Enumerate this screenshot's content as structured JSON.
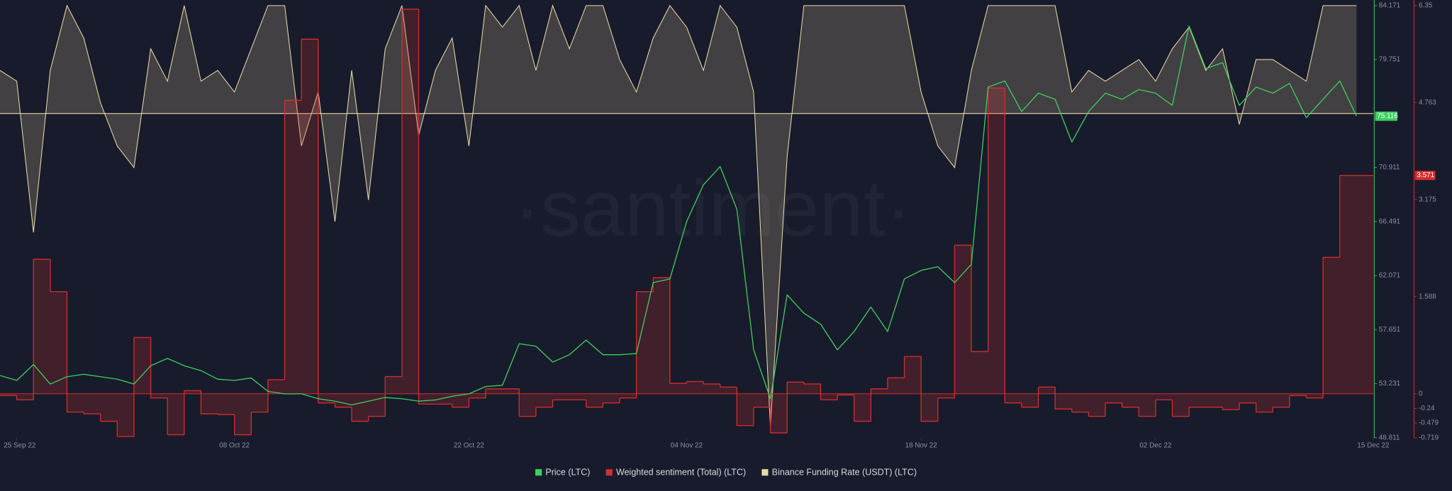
{
  "chart_data": {
    "type": "line",
    "watermark": "·santiment·",
    "x": [
      "2022-09-24",
      "2022-09-25",
      "2022-09-26",
      "2022-09-27",
      "2022-09-28",
      "2022-09-29",
      "2022-09-30",
      "2022-10-01",
      "2022-10-02",
      "2022-10-03",
      "2022-10-04",
      "2022-10-05",
      "2022-10-06",
      "2022-10-07",
      "2022-10-08",
      "2022-10-09",
      "2022-10-10",
      "2022-10-11",
      "2022-10-12",
      "2022-10-13",
      "2022-10-14",
      "2022-10-15",
      "2022-10-16",
      "2022-10-17",
      "2022-10-18",
      "2022-10-19",
      "2022-10-20",
      "2022-10-21",
      "2022-10-22",
      "2022-10-23",
      "2022-10-24",
      "2022-10-25",
      "2022-10-26",
      "2022-10-27",
      "2022-10-28",
      "2022-10-29",
      "2022-10-30",
      "2022-10-31",
      "2022-11-01",
      "2022-11-02",
      "2022-11-03",
      "2022-11-04",
      "2022-11-05",
      "2022-11-06",
      "2022-11-07",
      "2022-11-08",
      "2022-11-09",
      "2022-11-10",
      "2022-11-11",
      "2022-11-12",
      "2022-11-13",
      "2022-11-14",
      "2022-11-15",
      "2022-11-16",
      "2022-11-17",
      "2022-11-18",
      "2022-11-19",
      "2022-11-20",
      "2022-11-21",
      "2022-11-22",
      "2022-11-23",
      "2022-11-24",
      "2022-11-25",
      "2022-11-26",
      "2022-11-27",
      "2022-11-28",
      "2022-11-29",
      "2022-11-30",
      "2022-12-01",
      "2022-12-02",
      "2022-12-03",
      "2022-12-04",
      "2022-12-05",
      "2022-12-06",
      "2022-12-07",
      "2022-12-08",
      "2022-12-09",
      "2022-12-10",
      "2022-12-11",
      "2022-12-12",
      "2022-12-13",
      "2022-12-14"
    ],
    "xlim": [
      "2022-09-24",
      "2022-12-15"
    ],
    "xticks": [
      {
        "value": "2022-09-25",
        "label": "25 Sep 22"
      },
      {
        "value": "2022-10-08",
        "label": "08 Oct 22"
      },
      {
        "value": "2022-10-22",
        "label": "22 Oct 22"
      },
      {
        "value": "2022-11-04",
        "label": "04 Nov 22"
      },
      {
        "value": "2022-11-18",
        "label": "18 Nov 22"
      },
      {
        "value": "2022-12-02",
        "label": "02 Dec 22"
      },
      {
        "value": "2022-12-15",
        "label": "15 Dec 22"
      }
    ],
    "ylim": [
      48.811,
      84.171
    ],
    "yticks": [
      84.171,
      79.751,
      70.911,
      66.491,
      62.071,
      57.651,
      53.231,
      48.811
    ],
    "y2lim": [
      -0.719,
      6.35
    ],
    "y2ticks": [
      6.35,
      4.763,
      3.175,
      1.588,
      0,
      -0.24,
      -0.479,
      -0.719
    ],
    "y3lim": [
      -0.03,
      0.01
    ],
    "series": [
      {
        "name": "Price (LTC)",
        "color": "#3ecf5f",
        "values": [
          53.9,
          53.5,
          54.8,
          53.2,
          53.8,
          54.0,
          53.8,
          53.6,
          53.2,
          54.7,
          55.3,
          54.7,
          54.3,
          53.6,
          53.5,
          53.7,
          52.6,
          52.4,
          52.4,
          52.0,
          51.8,
          51.5,
          51.8,
          52.1,
          52.0,
          51.8,
          51.9,
          52.2,
          52.4,
          53.0,
          53.1,
          56.5,
          56.3,
          55.0,
          55.6,
          56.8,
          55.6,
          55.6,
          55.7,
          61.5,
          61.8,
          66.5,
          69.5,
          71.0,
          67.5,
          56.0,
          52.0,
          60.5,
          59.0,
          58.1,
          56.0,
          57.5,
          59.5,
          57.5,
          61.8,
          62.5,
          62.8,
          61.5,
          63.0,
          77.5,
          78.0,
          75.5,
          77.0,
          76.5,
          73.0,
          75.5,
          77.0,
          76.5,
          77.3,
          77.0,
          76.0,
          82.5,
          79.0,
          79.5,
          76.0,
          77.5,
          77.0,
          77.8,
          75.0,
          76.5,
          78.0,
          75.116
        ]
      },
      {
        "name": "Weighted sentiment (Total) (LTC)",
        "color": "#d42e2e",
        "axis": "y2",
        "style": "step",
        "values": [
          -0.03,
          -0.1,
          2.2,
          1.67,
          -0.3,
          -0.33,
          -0.45,
          -0.7,
          0.92,
          -0.07,
          -0.67,
          0.05,
          -0.33,
          -0.34,
          -0.67,
          -0.3,
          0.23,
          4.8,
          5.8,
          -0.15,
          -0.22,
          -0.45,
          -0.37,
          0.28,
          6.29,
          -0.17,
          -0.17,
          -0.22,
          -0.07,
          0.08,
          0.08,
          -0.37,
          -0.22,
          -0.1,
          -0.1,
          -0.22,
          -0.15,
          -0.07,
          1.67,
          1.9,
          0.17,
          0.2,
          0.16,
          0.11,
          -0.52,
          -0.22,
          -0.64,
          0.19,
          0.16,
          -0.1,
          -0.02,
          -0.45,
          0.08,
          0.26,
          0.61,
          -0.45,
          -0.07,
          2.43,
          0.69,
          5.0,
          -0.15,
          -0.22,
          0.11,
          -0.25,
          -0.3,
          -0.37,
          -0.15,
          -0.22,
          -0.37,
          -0.1,
          -0.37,
          -0.22,
          -0.22,
          -0.26,
          -0.15,
          -0.3,
          -0.22,
          -0.03,
          -0.07,
          2.23,
          3.571,
          3.571
        ]
      },
      {
        "name": "Binance Funding Rate (USDT) (LTC)",
        "color": "#e9d9a6",
        "axis": "y3",
        "values": [
          0.004,
          0.003,
          -0.011,
          0.004,
          0.01,
          0.007,
          0.001,
          -0.003,
          -0.005,
          0.006,
          0.003,
          0.01,
          0.003,
          0.004,
          0.002,
          0.006,
          0.01,
          0.01,
          -0.003,
          0.002,
          -0.01,
          0.004,
          -0.008,
          0.006,
          0.01,
          -0.002,
          0.004,
          0.007,
          -0.003,
          0.01,
          0.008,
          0.01,
          0.004,
          0.01,
          0.006,
          0.01,
          0.01,
          0.005,
          0.002,
          0.007,
          0.01,
          0.008,
          0.004,
          0.01,
          0.008,
          0.002,
          -0.029,
          -0.004,
          0.01,
          0.01,
          0.01,
          0.01,
          0.01,
          0.01,
          0.01,
          0.002,
          -0.003,
          -0.005,
          0.004,
          0.01,
          0.01,
          0.01,
          0.01,
          0.01,
          0.002,
          0.004,
          0.003,
          0.004,
          0.005,
          0.003,
          0.006,
          0.008,
          0.004,
          0.006,
          -0.001,
          0.005,
          0.005,
          0.004,
          0.003,
          0.01,
          0.01,
          0.01
        ]
      }
    ]
  }
}
